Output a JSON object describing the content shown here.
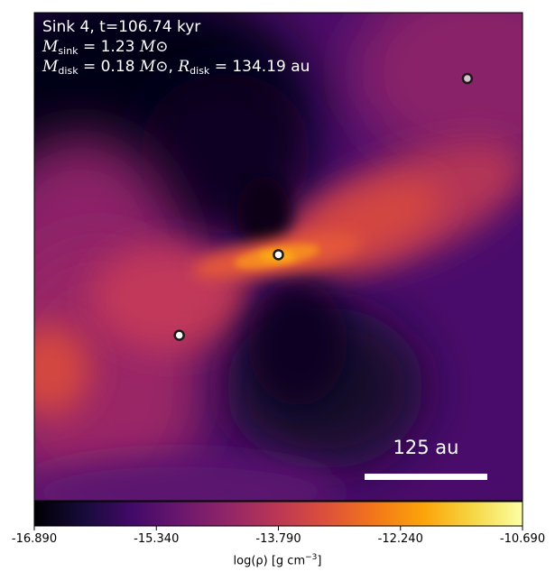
{
  "chart_data": {
    "type": "heatmap",
    "title": {
      "sink_label": "Sink 4, t=106.74 kyr",
      "m_sink_symbol": "M",
      "m_sink_sub": "sink",
      "m_sink_value": "= 1.23",
      "m_disk_symbol": "M",
      "m_disk_sub": "disk",
      "m_disk_value": "= 0.18",
      "r_disk_symbol": "R",
      "r_disk_sub": "disk",
      "r_disk_value": "= 134.19 au",
      "sun_unit": "M⊙"
    },
    "colormap": "inferno",
    "colorbar": {
      "label_main": "log(ρ) [g cm",
      "label_exp": "−3",
      "label_close": "]",
      "ticks": [
        "-16.890",
        "-15.340",
        "-13.790",
        "-12.240",
        "-10.690"
      ],
      "range": [
        -16.89,
        -10.69
      ]
    },
    "scale_bar": {
      "label": "125 au"
    },
    "sinks": [
      {
        "x": 0.5,
        "y": 0.496,
        "fill": "#ffffff"
      },
      {
        "x": 0.297,
        "y": 0.661,
        "fill": "#ffffff"
      },
      {
        "x": 0.887,
        "y": 0.135,
        "fill": "#ddbfd2"
      }
    ]
  }
}
